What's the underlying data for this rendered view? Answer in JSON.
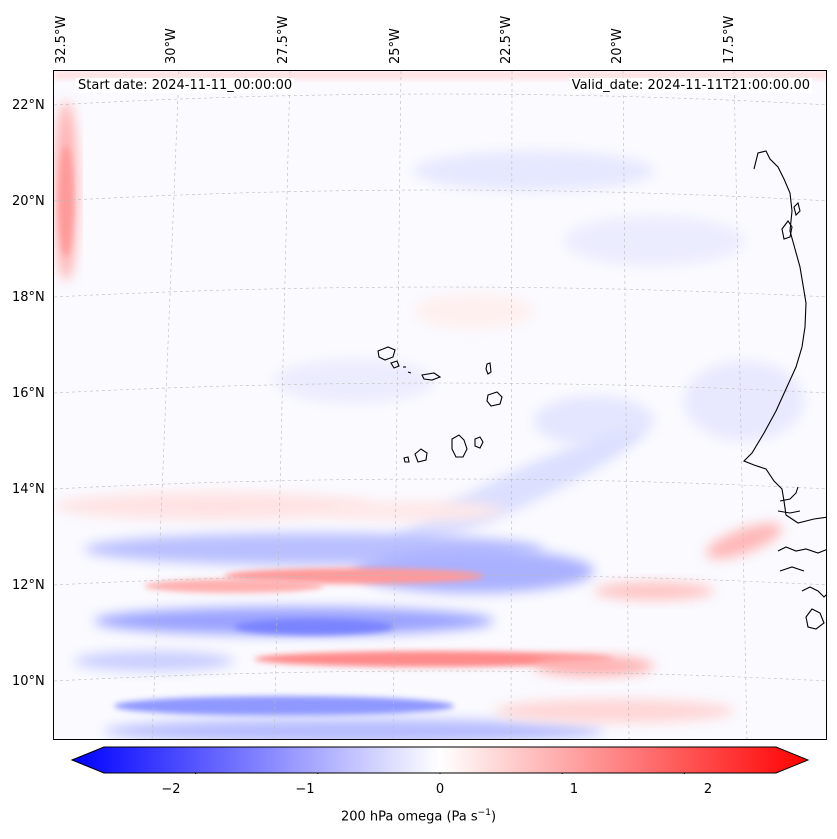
{
  "header": {
    "start_label": "Start date: 2024-11-11_00:00:00",
    "valid_label": "Valid_date: 2024-11-11T21:00:00.00"
  },
  "lon_ticks": [
    "32.5°W",
    "30°W",
    "27.5°W",
    "25°W",
    "22.5°W",
    "20°W",
    "17.5°W"
  ],
  "lat_ticks": [
    "22°N",
    "20°N",
    "18°N",
    "16°N",
    "14°N",
    "12°N",
    "10°N"
  ],
  "colorbar": {
    "ticks": [
      "−2",
      "−1",
      "0",
      "1",
      "2"
    ],
    "label_text": "200 hPa omega (Pa s",
    "label_sup": "−1",
    "label_end": ")",
    "range": [
      -2.75,
      2.75
    ],
    "colors": {
      "neg": "#0000ff",
      "mid": "#ffffff",
      "pos": "#ff0000"
    }
  },
  "map": {
    "coastline_color": "#000000",
    "gridline_color": "#bbbbbb",
    "features": [
      "cape-verde-islands",
      "west-africa-coast"
    ]
  }
}
